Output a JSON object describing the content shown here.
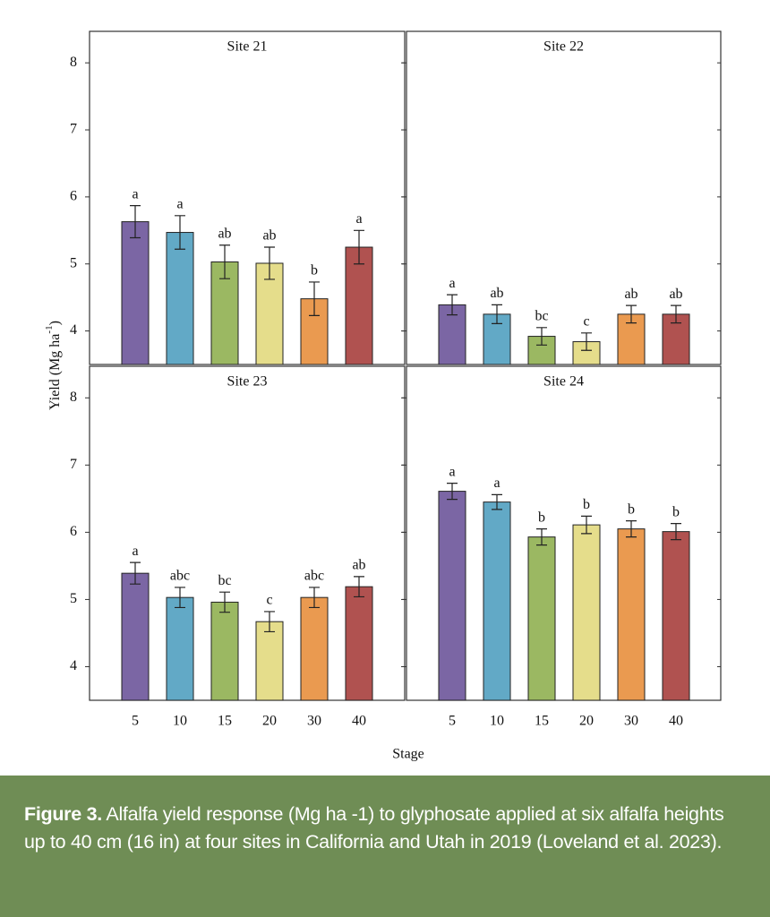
{
  "axes": {
    "ylabel": "Yield (Mg ha",
    "ylabel_sup": "-1",
    "ylabel_end": ")",
    "xlabel": "Stage"
  },
  "caption": {
    "label": "Figure 3.",
    "text": "Alfalfa yield response (Mg ha -1) to glyphosate applied at six alfalfa heights up to 40 cm (16 in) at four sites in California and Utah in 2019 (Loveland et al. 2023)."
  },
  "chart_data": [
    {
      "type": "bar",
      "title": "Site 21",
      "categories": [
        "5",
        "10",
        "15",
        "20",
        "30",
        "40"
      ],
      "values": [
        5.63,
        5.47,
        5.03,
        5.01,
        4.48,
        5.25
      ],
      "errors": [
        0.24,
        0.25,
        0.25,
        0.24,
        0.25,
        0.25
      ],
      "annotations": [
        "a",
        "a",
        "ab",
        "ab",
        "b",
        "a"
      ],
      "colors": [
        "#7b66a4",
        "#62a9c6",
        "#9bb862",
        "#e5dd8b",
        "#ea9a50",
        "#b05250"
      ],
      "ylim": [
        3.5,
        8.47
      ],
      "yticks": [
        4,
        5,
        6,
        7,
        8
      ],
      "show_xticklabels": false,
      "show_yticklabels": true
    },
    {
      "type": "bar",
      "title": "Site 22",
      "categories": [
        "5",
        "10",
        "15",
        "20",
        "30",
        "40"
      ],
      "values": [
        4.39,
        4.25,
        3.92,
        3.84,
        4.25,
        4.25
      ],
      "errors": [
        0.15,
        0.14,
        0.13,
        0.13,
        0.13,
        0.13
      ],
      "annotations": [
        "a",
        "ab",
        "bc",
        "c",
        "ab",
        "ab"
      ],
      "colors": [
        "#7b66a4",
        "#62a9c6",
        "#9bb862",
        "#e5dd8b",
        "#ea9a50",
        "#b05250"
      ],
      "ylim": [
        3.5,
        8.47
      ],
      "yticks": [
        4,
        5,
        6,
        7,
        8
      ],
      "show_xticklabels": false,
      "show_yticklabels": false
    },
    {
      "type": "bar",
      "title": "Site 23",
      "categories": [
        "5",
        "10",
        "15",
        "20",
        "30",
        "40"
      ],
      "values": [
        5.39,
        5.03,
        4.96,
        4.67,
        5.03,
        5.19
      ],
      "errors": [
        0.16,
        0.15,
        0.15,
        0.15,
        0.15,
        0.15
      ],
      "annotations": [
        "a",
        "abc",
        "bc",
        "c",
        "abc",
        "ab"
      ],
      "colors": [
        "#7b66a4",
        "#62a9c6",
        "#9bb862",
        "#e5dd8b",
        "#ea9a50",
        "#b05250"
      ],
      "ylim": [
        3.5,
        8.47
      ],
      "yticks": [
        4,
        5,
        6,
        7,
        8
      ],
      "show_xticklabels": true,
      "show_yticklabels": true
    },
    {
      "type": "bar",
      "title": "Site 24",
      "categories": [
        "5",
        "10",
        "15",
        "20",
        "30",
        "40"
      ],
      "values": [
        6.61,
        6.45,
        5.93,
        6.11,
        6.05,
        6.01
      ],
      "errors": [
        0.12,
        0.11,
        0.12,
        0.13,
        0.12,
        0.12
      ],
      "annotations": [
        "a",
        "a",
        "b",
        "b",
        "b",
        "b"
      ],
      "colors": [
        "#7b66a4",
        "#62a9c6",
        "#9bb862",
        "#e5dd8b",
        "#ea9a50",
        "#b05250"
      ],
      "ylim": [
        3.5,
        8.47
      ],
      "yticks": [
        4,
        5,
        6,
        7,
        8
      ],
      "show_xticklabels": true,
      "show_yticklabels": false
    }
  ]
}
